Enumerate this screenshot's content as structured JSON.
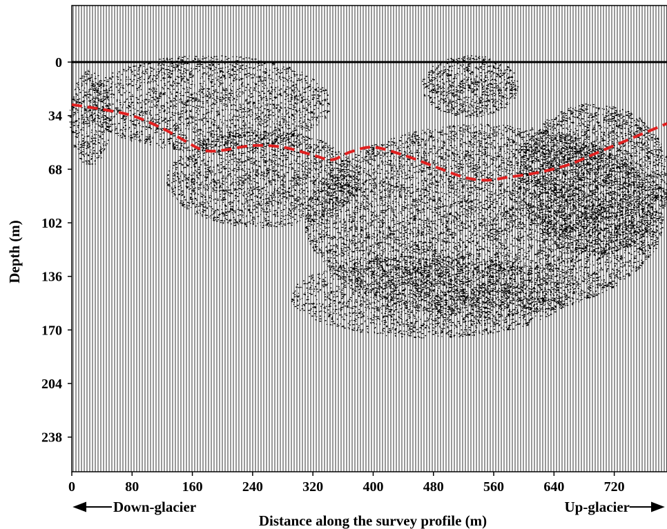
{
  "chart_data": {
    "type": "line",
    "title": "",
    "xlabel": "Distance along the survey profile (m)",
    "ylabel": "Depth (m)",
    "xlim": [
      0,
      790
    ],
    "ylim": [
      0,
      260
    ],
    "y_inverted": true,
    "x_ticks": [
      0,
      80,
      160,
      240,
      320,
      400,
      480,
      560,
      640,
      720
    ],
    "y_ticks": [
      0,
      34,
      68,
      102,
      136,
      170,
      204,
      238
    ],
    "annotations": {
      "left": "Down-glacier",
      "right": "Up-glacier"
    },
    "background": "radar (GPR) wiggle-trace profile",
    "series": [
      {
        "style": "dashed",
        "color": "#e02020",
        "x": [
          0,
          40,
          80,
          120,
          150,
          175,
          200,
          240,
          280,
          320,
          345,
          370,
          400,
          440,
          480,
          520,
          550,
          580,
          620,
          660,
          700,
          740,
          790
        ],
        "y": [
          27,
          30,
          34,
          42,
          50,
          56,
          56,
          53,
          54,
          59,
          62,
          57,
          54,
          59,
          66,
          73,
          75,
          73,
          70,
          65,
          57,
          49,
          39
        ]
      }
    ]
  },
  "colors": {
    "trace": "#000000",
    "interface": "#e02020"
  }
}
